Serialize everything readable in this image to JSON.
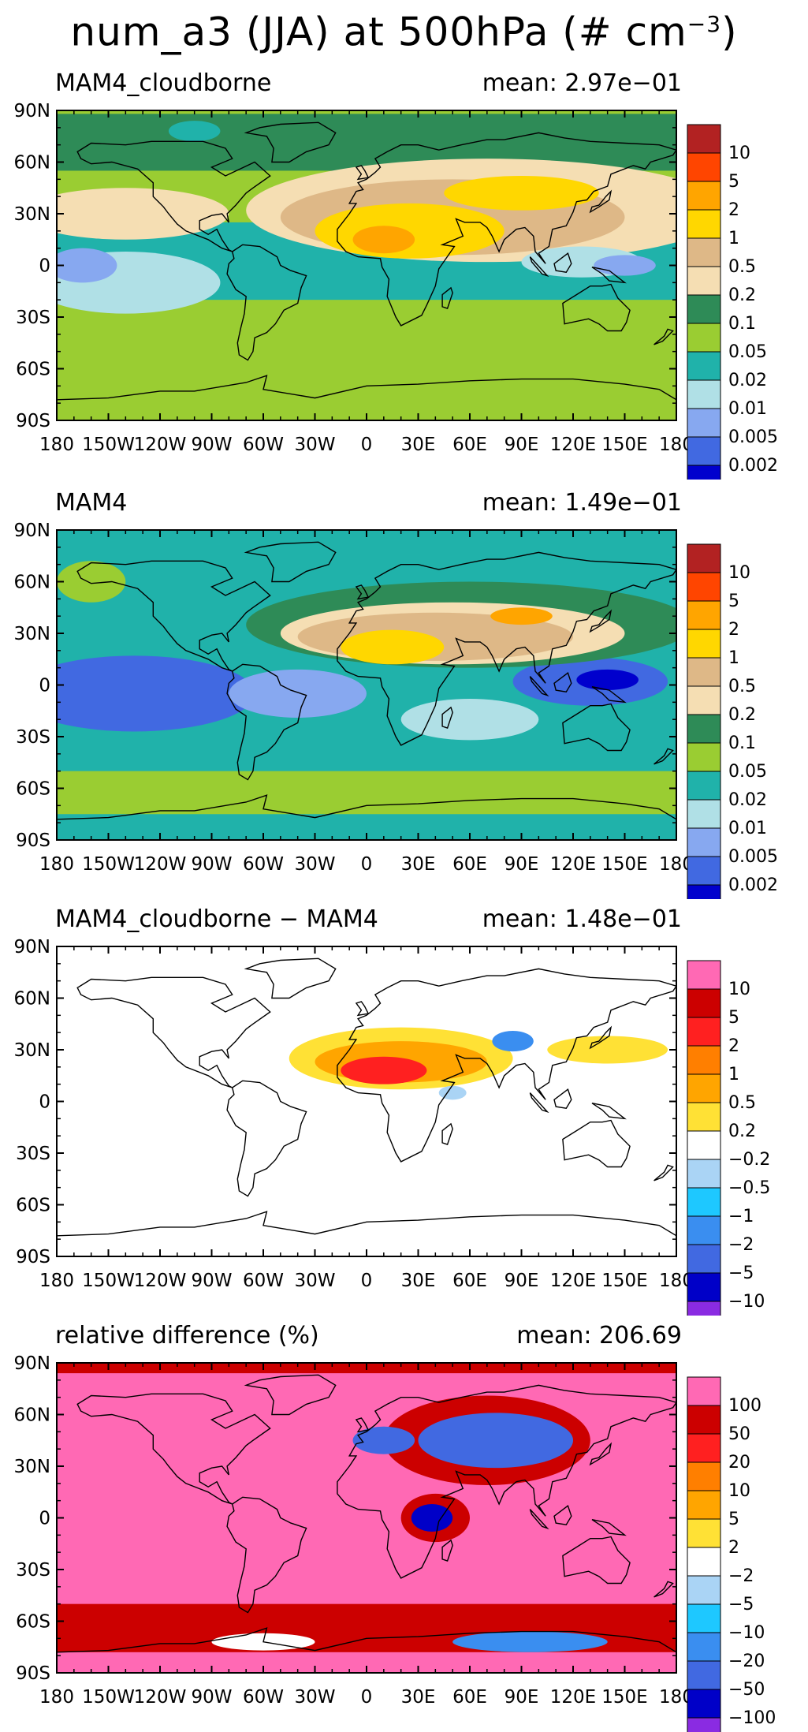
{
  "figure": {
    "title_main": "num_a3 (JJA) at 500hPa (# cm",
    "title_exp": "−3",
    "title_close": ")"
  },
  "axes": {
    "lat_labels": [
      "90N",
      "60N",
      "30N",
      "0",
      "30S",
      "60S",
      "90S"
    ],
    "lon_labels": [
      "180",
      "150W",
      "120W",
      "90W",
      "60W",
      "30W",
      "0",
      "30E",
      "60E",
      "90E",
      "120E",
      "150E",
      "180"
    ]
  },
  "panels": [
    {
      "name": "MAM4_cloudborne",
      "mean": "mean: 2.97e−01",
      "colorbar": {
        "colors": [
          "#b22222",
          "#ff4500",
          "#ffa500",
          "#ffd700",
          "#deb887",
          "#f5deb3",
          "#2e8b57",
          "#9acd32",
          "#20b2aa",
          "#b0e0e6",
          "#87a8f0",
          "#4169e1",
          "#0000cd"
        ],
        "labels": [
          "10",
          "5",
          "2",
          "1",
          "0.5",
          "0.2",
          "0.1",
          "0.05",
          "0.02",
          "0.01",
          "0.005",
          "0.002"
        ]
      }
    },
    {
      "name": "MAM4",
      "mean": "mean: 1.49e−01",
      "colorbar": {
        "colors": [
          "#b22222",
          "#ff4500",
          "#ffa500",
          "#ffd700",
          "#deb887",
          "#f5deb3",
          "#2e8b57",
          "#9acd32",
          "#20b2aa",
          "#b0e0e6",
          "#87a8f0",
          "#4169e1",
          "#0000cd"
        ],
        "labels": [
          "10",
          "5",
          "2",
          "1",
          "0.5",
          "0.2",
          "0.1",
          "0.05",
          "0.02",
          "0.01",
          "0.005",
          "0.002"
        ]
      }
    },
    {
      "name": "MAM4_cloudborne − MAM4",
      "mean": "mean: 1.48e−01",
      "colorbar": {
        "colors": [
          "#ff69b4",
          "#cc0000",
          "#ff2020",
          "#ff7f00",
          "#ffa500",
          "#ffe135",
          "#ffffff",
          "#aad4f5",
          "#1ec8ff",
          "#3a8ef0",
          "#4169e1",
          "#0000c8",
          "#8a2be2"
        ],
        "labels": [
          "10",
          "5",
          "2",
          "1",
          "0.5",
          "0.2",
          "−0.2",
          "−0.5",
          "−1",
          "−2",
          "−5",
          "−10"
        ]
      }
    },
    {
      "name": "relative difference (%)",
      "mean": "mean: 206.69",
      "colorbar": {
        "colors": [
          "#ff69b4",
          "#cc0000",
          "#ff2020",
          "#ff7f00",
          "#ffa500",
          "#ffe135",
          "#ffffff",
          "#aad4f5",
          "#1ec8ff",
          "#3a8ef0",
          "#4169e1",
          "#0000c8",
          "#8a2be2"
        ],
        "labels": [
          "100",
          "50",
          "20",
          "10",
          "5",
          "2",
          "−2",
          "−5",
          "−10",
          "−20",
          "−50",
          "−100"
        ]
      }
    }
  ]
}
